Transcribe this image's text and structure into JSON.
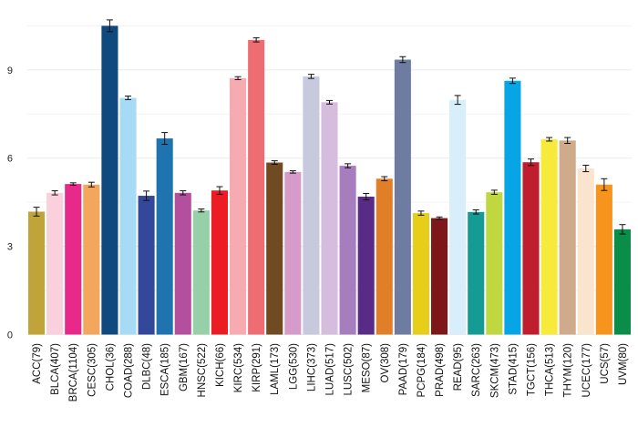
{
  "chart_data": {
    "type": "bar",
    "title": "",
    "xlabel": "",
    "ylabel": "",
    "ylim": [
      0,
      10.9
    ],
    "yticks": [
      0,
      3,
      6,
      9
    ],
    "grid": true,
    "error_bars": true,
    "categories": [
      "ACC(79)",
      "BLCA(407)",
      "BRCA(1104)",
      "CESC(305)",
      "CHOL(36)",
      "COAD(288)",
      "DLBC(48)",
      "ESCA(185)",
      "GBM(167)",
      "HNSC(522)",
      "KICH(66)",
      "KIRC(534)",
      "KIRP(291)",
      "LAML(173)",
      "LGG(530)",
      "LIHC(373)",
      "LUAD(517)",
      "LUSC(502)",
      "MESO(87)",
      "OV(308)",
      "PAAD(179)",
      "PCPG(184)",
      "PRAD(498)",
      "READ(95)",
      "SARC(263)",
      "SKCM(473)",
      "STAD(415)",
      "TGCT(156)",
      "THCA(513)",
      "THYM(120)",
      "UCEC(177)",
      "UCS(57)",
      "UVM(80)"
    ],
    "values": [
      4.18,
      4.82,
      5.12,
      5.1,
      10.5,
      8.05,
      4.72,
      6.67,
      4.82,
      4.22,
      4.9,
      8.72,
      10.02,
      5.85,
      5.53,
      8.78,
      7.9,
      5.74,
      4.69,
      5.3,
      9.35,
      4.13,
      3.96,
      7.98,
      4.17,
      4.84,
      8.63,
      5.86,
      6.64,
      6.6,
      5.65,
      5.1,
      3.58
    ],
    "errors": [
      0.15,
      0.07,
      0.04,
      0.08,
      0.2,
      0.06,
      0.16,
      0.2,
      0.07,
      0.05,
      0.13,
      0.05,
      0.07,
      0.06,
      0.04,
      0.07,
      0.06,
      0.07,
      0.11,
      0.07,
      0.1,
      0.07,
      0.04,
      0.15,
      0.07,
      0.07,
      0.09,
      0.11,
      0.06,
      0.1,
      0.11,
      0.2,
      0.16
    ],
    "colors": [
      "#C0A43A",
      "#F9D0DC",
      "#E7298A",
      "#F4A65C",
      "#10497D",
      "#A6DAF5",
      "#34489B",
      "#1F73AE",
      "#B44F9E",
      "#97CFA8",
      "#EB1C24",
      "#F6ABB0",
      "#EE6D72",
      "#704A22",
      "#D69BC8",
      "#C7C9DC",
      "#D6BDDD",
      "#A77EBD",
      "#582B87",
      "#E07F28",
      "#6F7CA2",
      "#E7CE18",
      "#7E171A",
      "#D8EEFA",
      "#149C94",
      "#BFD840",
      "#06A5E6",
      "#BE1E2D",
      "#F6EB3B",
      "#CFAB8C",
      "#FAE4CE",
      "#F7941E",
      "#0A8D48"
    ]
  }
}
